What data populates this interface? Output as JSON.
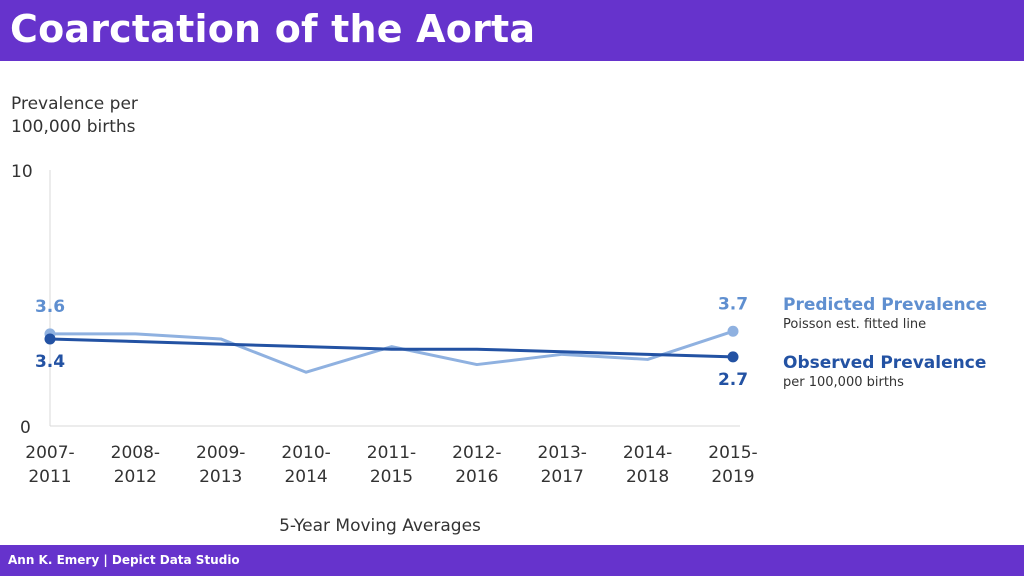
{
  "header": {
    "title": "Coarctation of the Aorta"
  },
  "footer": {
    "credit": "Ann K. Emery | Depict Data Studio"
  },
  "colors": {
    "brand": "#6633CC",
    "predicted": "#8FB1E0",
    "predicted_label": "#5F8FD0",
    "observed": "#2352A3",
    "axis": "#D9D9D9",
    "text": "#333333"
  },
  "chart_data": {
    "type": "line",
    "ylabel": "Prevalence per 100,000 births",
    "xlabel": "5-Year Moving Averages",
    "ylim": [
      0,
      10
    ],
    "yticks": [
      "0",
      "10"
    ],
    "grid": false,
    "legend_position": "right",
    "categories": [
      [
        "2007-",
        "2011"
      ],
      [
        "2008-",
        "2012"
      ],
      [
        "2009-",
        "2013"
      ],
      [
        "2010-",
        "2014"
      ],
      [
        "2011-",
        "2015"
      ],
      [
        "2012-",
        "2016"
      ],
      [
        "2013-",
        "2017"
      ],
      [
        "2014-",
        "2018"
      ],
      [
        "2015-",
        "2019"
      ]
    ],
    "series": [
      {
        "name": "Predicted Prevalence",
        "subtitle": "Poisson est. fitted line",
        "values": [
          3.6,
          3.6,
          3.4,
          2.1,
          3.1,
          2.4,
          2.8,
          2.6,
          3.7
        ],
        "start_label": "3.6",
        "end_label": "3.7"
      },
      {
        "name": "Observed Prevalence",
        "subtitle": "per 100,000 births",
        "values": [
          3.4,
          3.3,
          3.2,
          3.1,
          3.0,
          3.0,
          2.9,
          2.8,
          2.7
        ],
        "start_label": "3.4",
        "end_label": "2.7"
      }
    ]
  }
}
